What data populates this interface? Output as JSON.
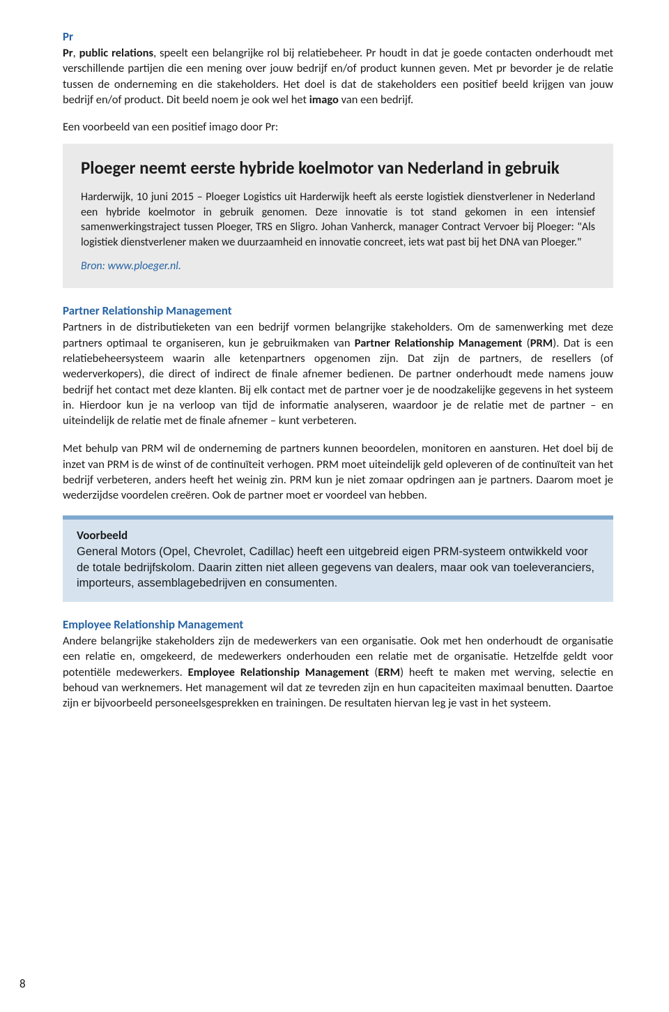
{
  "pr": {
    "heading": "Pr",
    "body_html": "<span class='bold'>Pr</span>, <span class='bold'>public relations</span>, speelt een belangrijke rol bij relatiebeheer. Pr houdt in dat je goede contacten onderhoudt met verschillende partijen die een mening over jouw bedrijf en/of product kunnen geven. Met pr bevorder je de relatie tussen de onderneming en die stakeholders. Het doel is dat de stakeholders een positief beeld krijgen van jouw bedrijf en/of product. Dit beeld noem je ook wel het <span class='bold'>imago</span> van een bedrijf."
  },
  "lead_in": "Een voorbeeld van een positief imago door Pr:",
  "grey_box": {
    "title": "Ploeger neemt eerste hybride koelmotor van Nederland in gebruik",
    "body": "Harderwijk, 10 juni 2015 – Ploeger Logistics uit Harderwijk heeft als eerste logistiek dienstverlener in Nederland een hybride koelmotor in gebruik genomen. Deze innovatie is tot stand gekomen in een intensief samenwerkingstraject tussen Ploeger, TRS en Sligro. Johan Vanherck, manager Contract Vervoer bij Ploeger: \"Als logistiek dienstverlener maken we duurzaamheid en innovatie concreet, iets wat past bij het DNA van Ploeger.\"",
    "source": "Bron: www.ploeger.nl."
  },
  "prm": {
    "heading": "Partner Relationship Management",
    "p1_html": "Partners in de distributieketen van een bedrijf vormen belangrijke stakeholders. Om de samenwerking met deze partners optimaal te organiseren, kun je gebruikmaken van <span class='bold'>Partner Relationship Management</span> (<span class='bold'>PRM</span>). Dat is een relatiebeheersysteem waarin alle ketenpartners opgenomen zijn. Dat zijn de partners, de resellers (of wederverkopers), die direct of indirect de finale afnemer bedienen. De partner onderhoudt mede namens jouw bedrijf het contact met deze klanten. Bij elk contact met de partner voer je de noodzakelijke gegevens in het systeem in. Hierdoor kun je na verloop van tijd de informatie analyseren, waardoor je de relatie met de partner – en uiteindelijk de relatie met de finale afnemer – kunt verbeteren.",
    "p2": "Met behulp van PRM wil de onderneming de partners kunnen beoordelen, monitoren en aansturen. Het doel bij de inzet van PRM is de winst of de continuïteit verhogen. PRM moet uiteindelijk geld opleveren of de continuïteit van het bedrijf verbeteren, anders heeft het weinig zin. PRM kun je niet zomaar opdringen aan je partners. Daarom moet je wederzijdse voordelen creëren. Ook de partner moet er voordeel van hebben."
  },
  "blue_box": {
    "title": "Voorbeeld",
    "body": "General Motors (Opel, Chevrolet, Cadillac) heeft een uitgebreid eigen PRM-systeem ontwikkeld voor de totale bedrijfskolom. Daarin zitten niet alleen gegevens van dealers, maar ook van toeleveranciers, importeurs, assemblagebedrijven en consumenten."
  },
  "erm": {
    "heading": "Employee Relationship Management",
    "body_html": "Andere belangrijke stakeholders zijn de medewerkers van een organisatie. Ook met hen onderhoudt de organisatie een relatie en, omgekeerd, de medewerkers onderhouden een relatie met de organisatie. Hetzelfde geldt voor potentiële medewerkers. <span class='bold'>Employee Relationship Management</span> (<span class='bold'>ERM</span>) heeft te maken met werving, selectie en behoud van werknemers. Het management wil dat ze tevreden zijn en hun capaciteiten maximaal benutten. Daartoe zijn er bijvoorbeeld personeelsgesprekken en trainingen. De resultaten hiervan leg je vast in het systeem."
  },
  "page_number": "8"
}
